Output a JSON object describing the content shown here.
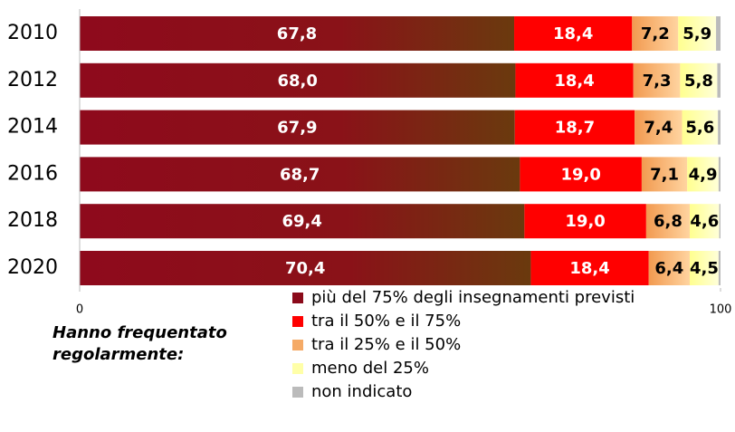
{
  "chart_data": {
    "type": "stacked_barh",
    "legend_title": "Hanno frequentato regolarmente:",
    "categories": [
      "2010",
      "2012",
      "2014",
      "2016",
      "2018",
      "2020"
    ],
    "xlim": [
      0,
      100
    ],
    "xticks": [
      0,
      100
    ],
    "series": [
      {
        "name": "più del 75% degli insegnamenti previsti",
        "color": "#8b0a1a",
        "label_color": "#ffffff",
        "values": [
          67.8,
          68.0,
          67.9,
          68.7,
          69.4,
          70.4
        ],
        "value_labels": [
          "67,8",
          "68,0",
          "67,9",
          "68,7",
          "69,4",
          "70,4"
        ]
      },
      {
        "name": "tra il 50% e il 75%",
        "color": "#ff0000",
        "label_color": "#ffffff",
        "values": [
          18.4,
          18.4,
          18.7,
          19.0,
          19.0,
          18.4
        ],
        "value_labels": [
          "18,4",
          "18,4",
          "18,7",
          "19,0",
          "19,0",
          "18,4"
        ]
      },
      {
        "name": "tra il 25% e il 50%",
        "color": "#f5aa66",
        "label_color": "#000000",
        "values": [
          7.2,
          7.3,
          7.4,
          7.1,
          6.8,
          6.4
        ],
        "value_labels": [
          "7,2",
          "7,3",
          "7,4",
          "7,1",
          "6,8",
          "6,4"
        ]
      },
      {
        "name": "meno del 25%",
        "color": "#ffffa8",
        "label_color": "#000000",
        "values": [
          5.9,
          5.8,
          5.6,
          4.9,
          4.6,
          4.5
        ],
        "value_labels": [
          "5,9",
          "5,8",
          "5,6",
          "4,9",
          "4,6",
          "4,5"
        ]
      },
      {
        "name": "non indicato",
        "color": "#bbbbbb",
        "values": [
          0.7,
          0.5,
          0.4,
          0.3,
          0.2,
          0.3
        ]
      }
    ]
  }
}
